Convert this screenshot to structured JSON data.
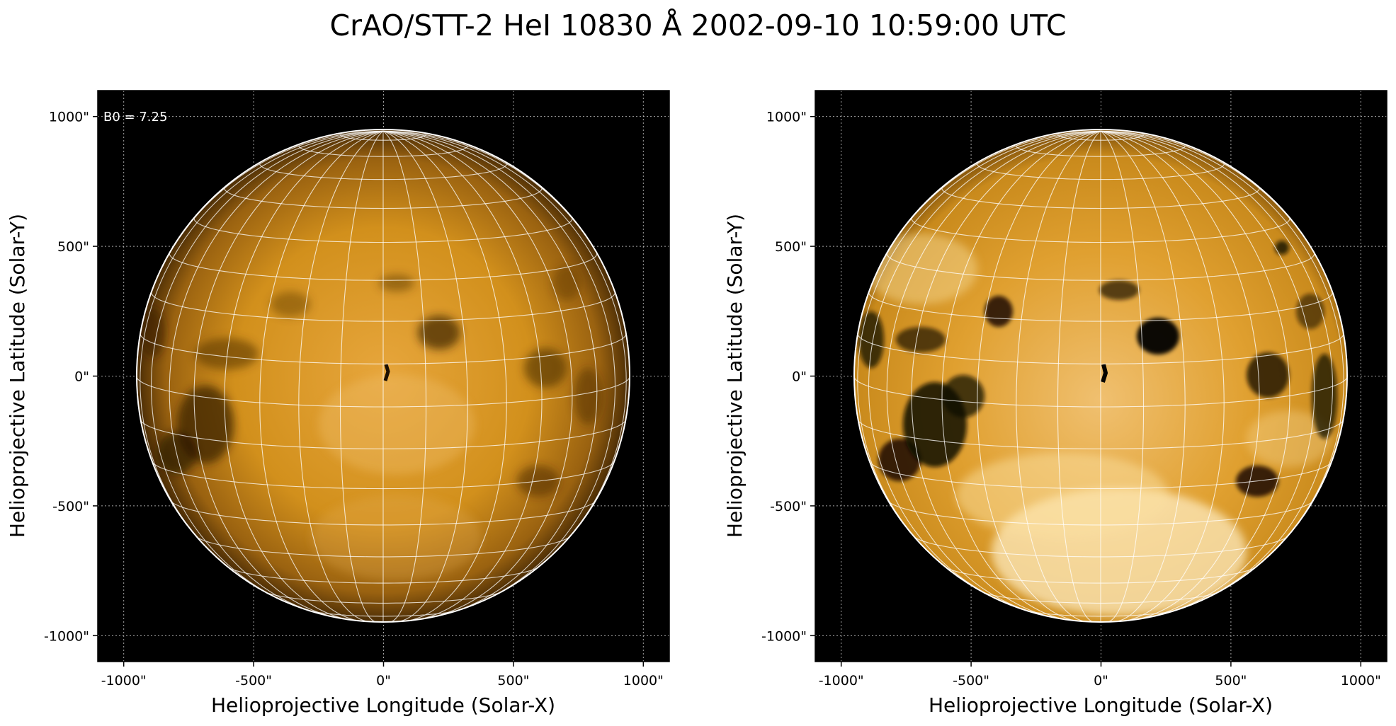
{
  "title": "CrAO/STT-2 HeI 10830 Å 2002-09-10 10:59:00 UTC",
  "colors": {
    "background": "#000000",
    "disk_mid": "#d58f12",
    "disk_dark": "#1a0f02",
    "disk_bright": "#fff2cc",
    "grid": "#ffffff"
  },
  "panels": [
    {
      "id": "left",
      "xlabel": "Helioprojective Longitude (Solar-X)",
      "ylabel": "Helioprojective Latitude (Solar-Y)",
      "annotation": "B0 = 7.25",
      "contrast": "normal"
    },
    {
      "id": "right",
      "xlabel": "Helioprojective Longitude (Solar-X)",
      "ylabel": "Helioprojective Latitude (Solar-Y)",
      "annotation": "",
      "contrast": "high"
    }
  ],
  "axes": {
    "xlim": [
      -1100,
      1100
    ],
    "ylim": [
      -1100,
      1100
    ],
    "xticks": [
      {
        "v": -1000,
        "label": "-1000\""
      },
      {
        "v": -500,
        "label": "-500\""
      },
      {
        "v": 0,
        "label": "0\""
      },
      {
        "v": 500,
        "label": "500\""
      },
      {
        "v": 1000,
        "label": "1000\""
      }
    ],
    "yticks": [
      {
        "v": -1000,
        "label": "-1000\""
      },
      {
        "v": -500,
        "label": "-500\""
      },
      {
        "v": 0,
        "label": "0\""
      },
      {
        "v": 500,
        "label": "500\""
      },
      {
        "v": 1000,
        "label": "1000\""
      }
    ],
    "grid": true
  },
  "sun": {
    "radius_arcsec": 950,
    "b0_deg": 7.25,
    "grid_spacing_deg": 10
  }
}
